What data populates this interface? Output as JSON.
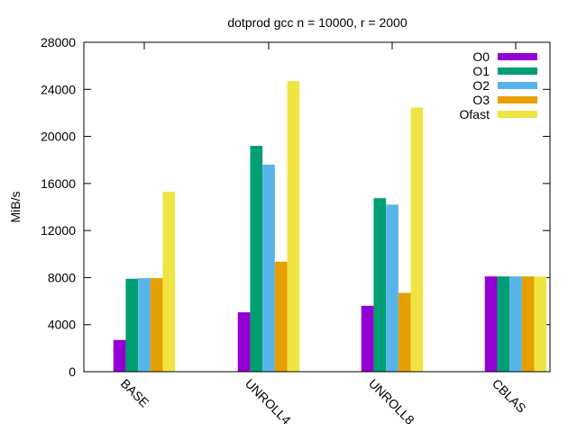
{
  "chart_data": {
    "type": "bar",
    "title": "dotprod gcc n = 10000, r = 2000",
    "xlabel": "",
    "ylabel": "MiB/s",
    "ylim": [
      0,
      28000
    ],
    "yticks": [
      0,
      4000,
      8000,
      12000,
      16000,
      20000,
      24000,
      28000
    ],
    "categories": [
      "BASE",
      "UNROLL4",
      "UNROLL8",
      "CBLAS"
    ],
    "series": [
      {
        "name": "O0",
        "color": "#9400d3",
        "values": [
          2700,
          5050,
          5600,
          8100
        ]
      },
      {
        "name": "O1",
        "color": "#009e73",
        "values": [
          7900,
          19200,
          14750,
          8100
        ]
      },
      {
        "name": "O2",
        "color": "#56b4e9",
        "values": [
          7950,
          17600,
          14200,
          8100
        ]
      },
      {
        "name": "O3",
        "color": "#e69f00",
        "values": [
          7950,
          9350,
          6700,
          8100
        ]
      },
      {
        "name": "Ofast",
        "color": "#f0e442",
        "values": [
          15300,
          24700,
          22450,
          8100
        ]
      }
    ],
    "legend_position": "top-right",
    "grid": false
  }
}
